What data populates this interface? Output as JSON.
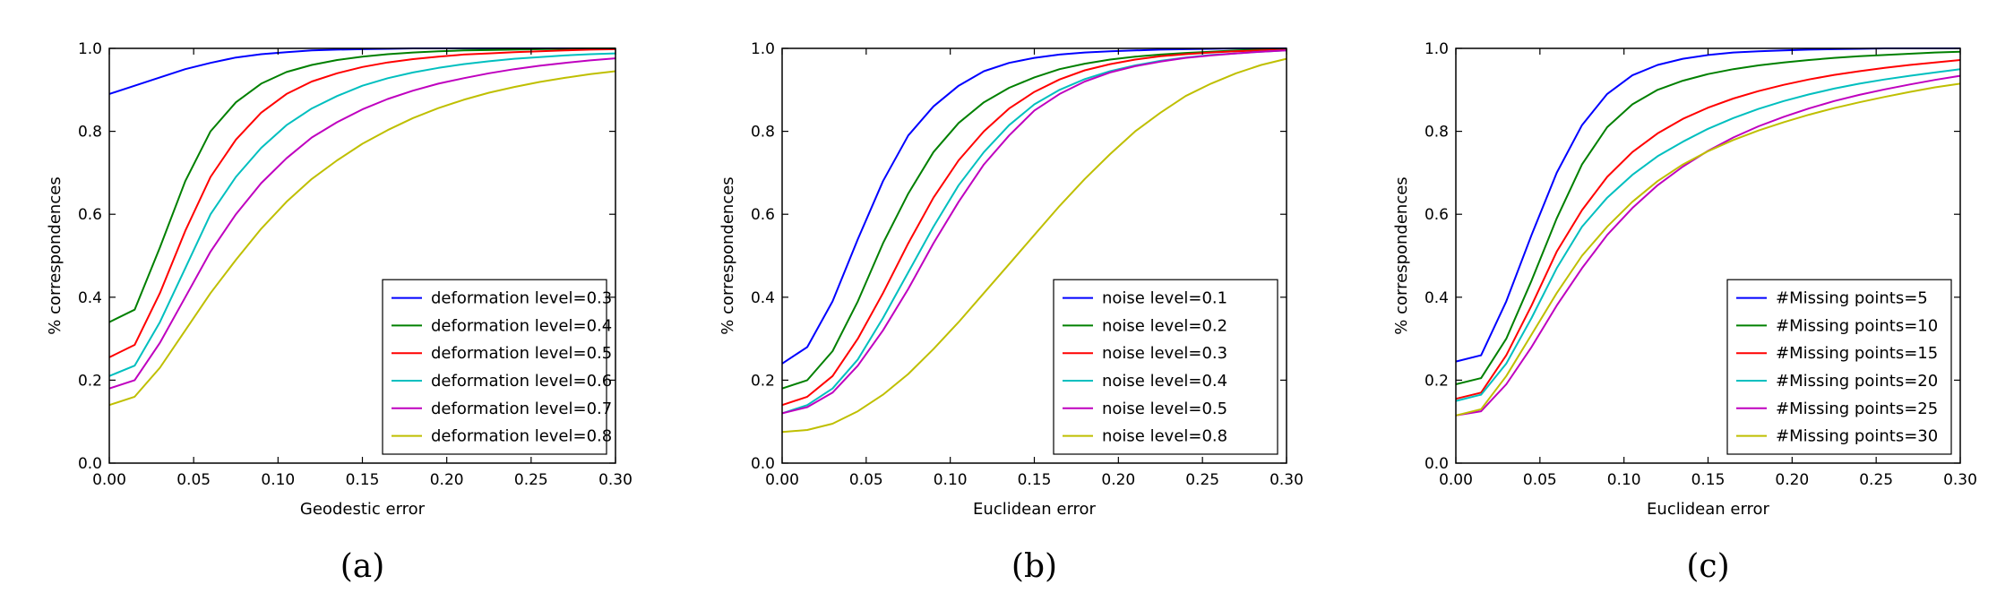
{
  "chart_data": [
    {
      "type": "line",
      "panel_label": "(a)",
      "xlabel": "Geodestic error",
      "ylabel": "% correspondences",
      "xlim": [
        0.0,
        0.3
      ],
      "ylim": [
        0.0,
        1.0
      ],
      "xticks": [
        "0.00",
        "0.05",
        "0.10",
        "0.15",
        "0.20",
        "0.25",
        "0.30"
      ],
      "yticks": [
        "0.0",
        "0.2",
        "0.4",
        "0.6",
        "0.8",
        "1.0"
      ],
      "grid": false,
      "legend_position": "lower-right",
      "x": [
        0.0,
        0.015,
        0.03,
        0.045,
        0.06,
        0.075,
        0.09,
        0.105,
        0.12,
        0.135,
        0.15,
        0.165,
        0.18,
        0.195,
        0.21,
        0.225,
        0.24,
        0.255,
        0.27,
        0.285,
        0.3
      ],
      "series": [
        {
          "name": "deformation level=0.3",
          "color": "#0000ff",
          "values": [
            0.89,
            0.91,
            0.93,
            0.95,
            0.965,
            0.978,
            0.986,
            0.991,
            0.995,
            0.997,
            0.998,
            0.999,
            1.0,
            1.0,
            1.0,
            1.0,
            1.0,
            1.0,
            1.0,
            1.0,
            1.0
          ]
        },
        {
          "name": "deformation level=0.4",
          "color": "#008000",
          "values": [
            0.34,
            0.37,
            0.52,
            0.68,
            0.8,
            0.87,
            0.915,
            0.943,
            0.96,
            0.972,
            0.98,
            0.986,
            0.99,
            0.993,
            0.995,
            0.996,
            0.997,
            0.998,
            0.999,
            1.0,
            1.0
          ]
        },
        {
          "name": "deformation level=0.5",
          "color": "#ff0000",
          "values": [
            0.255,
            0.285,
            0.41,
            0.56,
            0.69,
            0.78,
            0.845,
            0.89,
            0.92,
            0.94,
            0.955,
            0.966,
            0.974,
            0.98,
            0.985,
            0.988,
            0.991,
            0.993,
            0.995,
            0.997,
            0.998
          ]
        },
        {
          "name": "deformation level=0.6",
          "color": "#00bfbf",
          "values": [
            0.21,
            0.235,
            0.34,
            0.47,
            0.6,
            0.69,
            0.76,
            0.815,
            0.855,
            0.885,
            0.91,
            0.928,
            0.942,
            0.953,
            0.962,
            0.969,
            0.975,
            0.979,
            0.983,
            0.986,
            0.988
          ]
        },
        {
          "name": "deformation level=0.7",
          "color": "#bf00bf",
          "values": [
            0.18,
            0.2,
            0.29,
            0.4,
            0.51,
            0.6,
            0.675,
            0.735,
            0.785,
            0.822,
            0.853,
            0.878,
            0.898,
            0.915,
            0.928,
            0.94,
            0.95,
            0.958,
            0.965,
            0.971,
            0.976
          ]
        },
        {
          "name": "deformation level=0.8",
          "color": "#bfbf00",
          "values": [
            0.14,
            0.16,
            0.23,
            0.32,
            0.41,
            0.49,
            0.565,
            0.63,
            0.685,
            0.73,
            0.77,
            0.803,
            0.832,
            0.856,
            0.876,
            0.893,
            0.907,
            0.919,
            0.929,
            0.938,
            0.945
          ]
        }
      ]
    },
    {
      "type": "line",
      "panel_label": "(b)",
      "xlabel": "Euclidean error",
      "ylabel": "% correspondences",
      "xlim": [
        0.0,
        0.3
      ],
      "ylim": [
        0.0,
        1.0
      ],
      "xticks": [
        "0.00",
        "0.05",
        "0.10",
        "0.15",
        "0.20",
        "0.25",
        "0.30"
      ],
      "yticks": [
        "0.0",
        "0.2",
        "0.4",
        "0.6",
        "0.8",
        "1.0"
      ],
      "grid": false,
      "legend_position": "lower-right",
      "x": [
        0.0,
        0.015,
        0.03,
        0.045,
        0.06,
        0.075,
        0.09,
        0.105,
        0.12,
        0.135,
        0.15,
        0.165,
        0.18,
        0.195,
        0.21,
        0.225,
        0.24,
        0.255,
        0.27,
        0.285,
        0.3
      ],
      "series": [
        {
          "name": "noise level=0.1",
          "color": "#0000ff",
          "values": [
            0.24,
            0.28,
            0.39,
            0.54,
            0.68,
            0.79,
            0.86,
            0.91,
            0.945,
            0.965,
            0.977,
            0.985,
            0.99,
            0.993,
            0.995,
            0.997,
            0.998,
            0.999,
            1.0,
            1.0,
            1.0
          ]
        },
        {
          "name": "noise level=0.2",
          "color": "#008000",
          "values": [
            0.18,
            0.2,
            0.27,
            0.39,
            0.53,
            0.65,
            0.75,
            0.82,
            0.87,
            0.905,
            0.93,
            0.95,
            0.963,
            0.973,
            0.98,
            0.985,
            0.989,
            0.992,
            0.995,
            0.997,
            0.998
          ]
        },
        {
          "name": "noise level=0.3",
          "color": "#ff0000",
          "values": [
            0.14,
            0.16,
            0.21,
            0.3,
            0.41,
            0.53,
            0.64,
            0.73,
            0.8,
            0.855,
            0.895,
            0.925,
            0.947,
            0.962,
            0.973,
            0.981,
            0.986,
            0.99,
            0.993,
            0.995,
            0.997
          ]
        },
        {
          "name": "noise level=0.4",
          "color": "#00bfbf",
          "values": [
            0.12,
            0.14,
            0.18,
            0.25,
            0.35,
            0.46,
            0.57,
            0.67,
            0.75,
            0.815,
            0.865,
            0.9,
            0.926,
            0.945,
            0.959,
            0.97,
            0.978,
            0.984,
            0.988,
            0.992,
            0.995
          ]
        },
        {
          "name": "noise level=0.5",
          "color": "#bf00bf",
          "values": [
            0.12,
            0.135,
            0.17,
            0.235,
            0.32,
            0.42,
            0.53,
            0.63,
            0.72,
            0.79,
            0.85,
            0.89,
            0.92,
            0.942,
            0.957,
            0.968,
            0.977,
            0.983,
            0.988,
            0.992,
            0.995
          ]
        },
        {
          "name": "noise level=0.8",
          "color": "#bfbf00",
          "values": [
            0.075,
            0.08,
            0.095,
            0.125,
            0.165,
            0.215,
            0.275,
            0.34,
            0.41,
            0.48,
            0.55,
            0.62,
            0.685,
            0.745,
            0.8,
            0.845,
            0.885,
            0.915,
            0.94,
            0.96,
            0.975
          ]
        }
      ]
    },
    {
      "type": "line",
      "panel_label": "(c)",
      "xlabel": "Euclidean error",
      "ylabel": "% correspondences",
      "xlim": [
        0.0,
        0.3
      ],
      "ylim": [
        0.0,
        1.0
      ],
      "xticks": [
        "0.00",
        "0.05",
        "0.10",
        "0.15",
        "0.20",
        "0.25",
        "0.30"
      ],
      "yticks": [
        "0.0",
        "0.2",
        "0.4",
        "0.6",
        "0.8",
        "1.0"
      ],
      "grid": false,
      "legend_position": "lower-right",
      "x": [
        0.0,
        0.015,
        0.03,
        0.045,
        0.06,
        0.075,
        0.09,
        0.105,
        0.12,
        0.135,
        0.15,
        0.165,
        0.18,
        0.195,
        0.21,
        0.225,
        0.24,
        0.255,
        0.27,
        0.285,
        0.3
      ],
      "series": [
        {
          "name": "#Missing points=5",
          "color": "#0000ff",
          "values": [
            0.245,
            0.26,
            0.39,
            0.55,
            0.7,
            0.815,
            0.89,
            0.935,
            0.96,
            0.975,
            0.984,
            0.99,
            0.993,
            0.995,
            0.997,
            0.998,
            0.999,
            1.0,
            1.0,
            1.0,
            1.0
          ]
        },
        {
          "name": "#Missing points=10",
          "color": "#008000",
          "values": [
            0.19,
            0.205,
            0.3,
            0.44,
            0.59,
            0.72,
            0.81,
            0.865,
            0.9,
            0.922,
            0.938,
            0.95,
            0.959,
            0.966,
            0.972,
            0.977,
            0.981,
            0.984,
            0.987,
            0.99,
            0.992
          ]
        },
        {
          "name": "#Missing points=15",
          "color": "#ff0000",
          "values": [
            0.155,
            0.17,
            0.26,
            0.38,
            0.51,
            0.61,
            0.69,
            0.75,
            0.795,
            0.83,
            0.857,
            0.879,
            0.897,
            0.912,
            0.925,
            0.936,
            0.945,
            0.953,
            0.96,
            0.966,
            0.972
          ]
        },
        {
          "name": "#Missing points=20",
          "color": "#00bfbf",
          "values": [
            0.15,
            0.165,
            0.24,
            0.35,
            0.47,
            0.57,
            0.64,
            0.695,
            0.74,
            0.775,
            0.806,
            0.832,
            0.854,
            0.873,
            0.889,
            0.903,
            0.915,
            0.925,
            0.934,
            0.942,
            0.95
          ]
        },
        {
          "name": "#Missing points=25",
          "color": "#bf00bf",
          "values": [
            0.115,
            0.125,
            0.19,
            0.28,
            0.38,
            0.47,
            0.55,
            0.615,
            0.67,
            0.715,
            0.753,
            0.785,
            0.812,
            0.835,
            0.855,
            0.873,
            0.888,
            0.901,
            0.913,
            0.924,
            0.934
          ]
        },
        {
          "name": "#Missing points=30",
          "color": "#bfbf00",
          "values": [
            0.115,
            0.13,
            0.21,
            0.31,
            0.41,
            0.5,
            0.57,
            0.63,
            0.68,
            0.72,
            0.752,
            0.779,
            0.802,
            0.822,
            0.84,
            0.856,
            0.87,
            0.883,
            0.895,
            0.906,
            0.915
          ]
        }
      ]
    }
  ]
}
